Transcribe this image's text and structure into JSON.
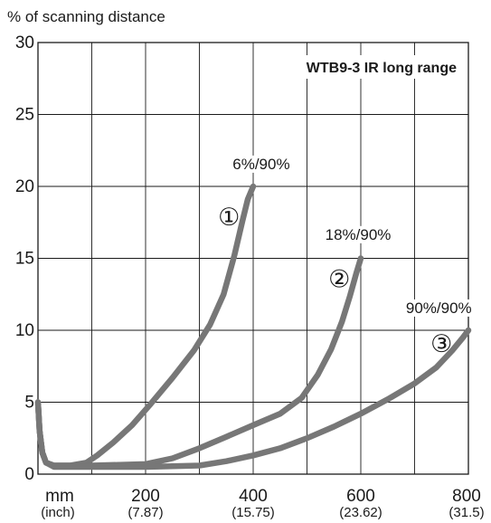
{
  "chart_data": {
    "type": "line",
    "title": "WTB9-3 IR long range",
    "ylabel": "% of scanning distance",
    "xlabel": "mm",
    "xlabel_sub": "(inch)",
    "xlim": [
      0,
      800
    ],
    "ylim": [
      0,
      30
    ],
    "x_ticks": [
      {
        "value": 200,
        "label": "200",
        "sub": "(7.87)"
      },
      {
        "value": 400,
        "label": "400",
        "sub": "(15.75)"
      },
      {
        "value": 600,
        "label": "600",
        "sub": "(23.62)"
      },
      {
        "value": 800,
        "label": "800",
        "sub": "(31.5)"
      }
    ],
    "y_ticks": [
      {
        "value": 0,
        "label": "0"
      },
      {
        "value": 5,
        "label": "5"
      },
      {
        "value": 10,
        "label": "10"
      },
      {
        "value": 15,
        "label": "15"
      },
      {
        "value": 20,
        "label": "20"
      },
      {
        "value": 25,
        "label": "25"
      },
      {
        "value": 30,
        "label": "30"
      }
    ],
    "grid_x": [
      100,
      200,
      300,
      400,
      500,
      600,
      700
    ],
    "grid_y": [
      5,
      10,
      15,
      20,
      25
    ],
    "grid": true,
    "line_color": "#777777",
    "series": [
      {
        "label": "6%/90%",
        "marker": "①",
        "points": [
          [
            0,
            5
          ],
          [
            3,
            3
          ],
          [
            8,
            1.5
          ],
          [
            15,
            0.8
          ],
          [
            30,
            0.6
          ],
          [
            60,
            0.6
          ],
          [
            90,
            0.8
          ],
          [
            110,
            1.3
          ],
          [
            140,
            2.2
          ],
          [
            175,
            3.4
          ],
          [
            210,
            4.9
          ],
          [
            250,
            6.7
          ],
          [
            290,
            8.6
          ],
          [
            320,
            10.4
          ],
          [
            345,
            12.5
          ],
          [
            365,
            15.2
          ],
          [
            380,
            17.6
          ],
          [
            390,
            19.1
          ],
          [
            400,
            20
          ]
        ]
      },
      {
        "label": "18%/90%",
        "marker": "②",
        "points": [
          [
            0,
            5
          ],
          [
            3,
            3
          ],
          [
            8,
            1.5
          ],
          [
            15,
            0.8
          ],
          [
            30,
            0.6
          ],
          [
            100,
            0.6
          ],
          [
            200,
            0.7
          ],
          [
            250,
            1.1
          ],
          [
            300,
            1.8
          ],
          [
            350,
            2.6
          ],
          [
            400,
            3.4
          ],
          [
            450,
            4.2
          ],
          [
            490,
            5.3
          ],
          [
            520,
            6.9
          ],
          [
            545,
            8.7
          ],
          [
            565,
            10.6
          ],
          [
            580,
            12.4
          ],
          [
            592,
            14.0
          ],
          [
            600,
            15
          ]
        ]
      },
      {
        "label": "90%/90%",
        "marker": "③",
        "points": [
          [
            0,
            5
          ],
          [
            3,
            3
          ],
          [
            8,
            1.5
          ],
          [
            15,
            0.8
          ],
          [
            30,
            0.5
          ],
          [
            100,
            0.5
          ],
          [
            200,
            0.5
          ],
          [
            300,
            0.6
          ],
          [
            350,
            0.9
          ],
          [
            400,
            1.3
          ],
          [
            450,
            1.8
          ],
          [
            500,
            2.5
          ],
          [
            550,
            3.3
          ],
          [
            600,
            4.2
          ],
          [
            650,
            5.2
          ],
          [
            700,
            6.3
          ],
          [
            740,
            7.4
          ],
          [
            770,
            8.6
          ],
          [
            790,
            9.5
          ],
          [
            800,
            10
          ]
        ]
      }
    ],
    "annotations": [
      {
        "text": "6%/90%",
        "x": 415,
        "y": 21.2
      },
      {
        "text": "18%/90%",
        "x": 595,
        "y": 16.3
      },
      {
        "text": "90%/90%",
        "x": 745,
        "y": 11.2
      }
    ],
    "markers": [
      {
        "text": "①",
        "x": 355,
        "y": 17.3
      },
      {
        "text": "②",
        "x": 560,
        "y": 13.0
      },
      {
        "text": "③",
        "x": 750,
        "y": 8.5
      }
    ]
  }
}
